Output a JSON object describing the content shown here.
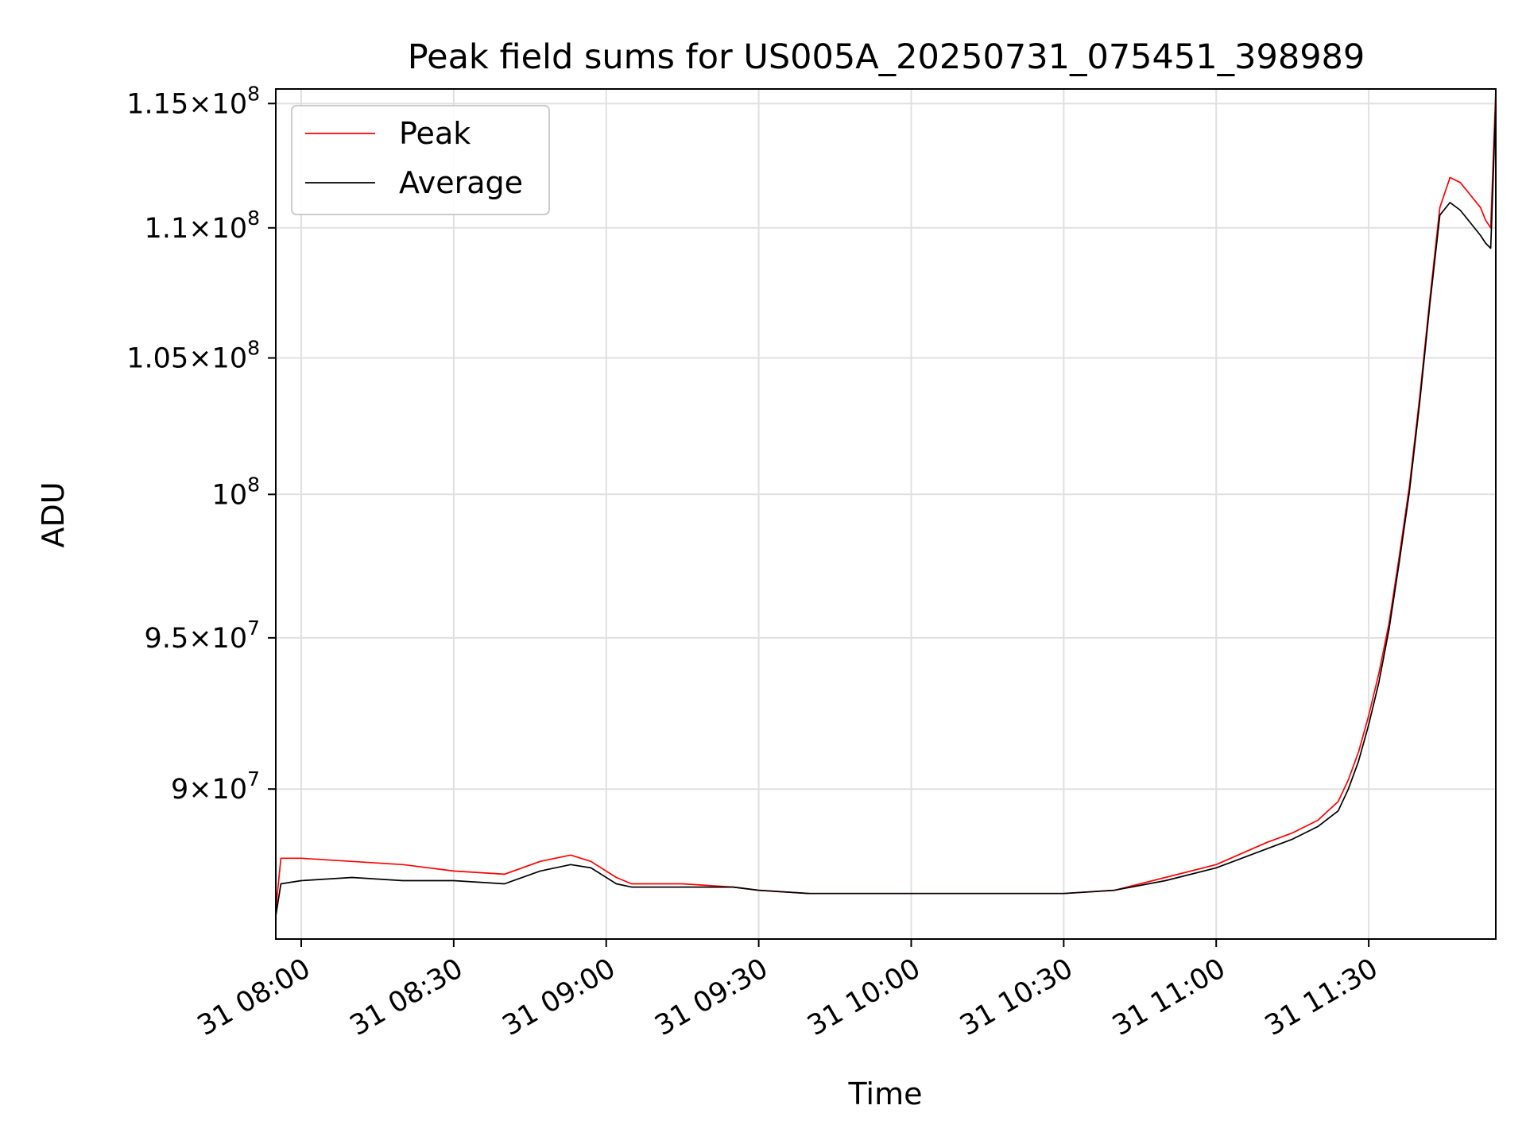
{
  "chart_data": {
    "type": "line",
    "title": "Peak field sums for US005A_20250731_075451_398989",
    "xlabel": "Time",
    "ylabel": "ADU",
    "xlim": [
      "2025-07-31T07:55:00",
      "2025-07-31T11:55:00"
    ],
    "ylim": [
      85300000,
      115600000
    ],
    "yscale": "log",
    "grid": true,
    "legend_position": "top-left",
    "xtick_labels": [
      "31 08:00",
      "31 08:30",
      "31 09:00",
      "31 09:30",
      "31 10:00",
      "31 10:30",
      "31 11:00",
      "31 11:30"
    ],
    "xtick_values": [
      "2025-07-31T08:00:00",
      "2025-07-31T08:30:00",
      "2025-07-31T09:00:00",
      "2025-07-31T09:30:00",
      "2025-07-31T10:00:00",
      "2025-07-31T10:30:00",
      "2025-07-31T11:00:00",
      "2025-07-31T11:30:00"
    ],
    "ytick_values": [
      90000000,
      95000000,
      100000000,
      105000000,
      110000000,
      115000000
    ],
    "ytick_mantissas": [
      "9",
      "9.5",
      "",
      "1.05",
      "1.1",
      "1.15"
    ],
    "ytick_exponents": [
      "7",
      "7",
      "8",
      "8",
      "8",
      "8"
    ],
    "series": [
      {
        "name": "Peak",
        "color": "#ff0000",
        "x": [
          "2025-07-31T07:55:00",
          "2025-07-31T07:56:00",
          "2025-07-31T08:00:00",
          "2025-07-31T08:10:00",
          "2025-07-31T08:20:00",
          "2025-07-31T08:30:00",
          "2025-07-31T08:40:00",
          "2025-07-31T08:47:00",
          "2025-07-31T08:53:00",
          "2025-07-31T08:57:00",
          "2025-07-31T09:02:00",
          "2025-07-31T09:05:00",
          "2025-07-31T09:15:00",
          "2025-07-31T09:25:00",
          "2025-07-31T09:30:00",
          "2025-07-31T09:40:00",
          "2025-07-31T09:50:00",
          "2025-07-31T10:00:00",
          "2025-07-31T10:10:00",
          "2025-07-31T10:20:00",
          "2025-07-31T10:30:00",
          "2025-07-31T10:40:00",
          "2025-07-31T10:50:00",
          "2025-07-31T11:00:00",
          "2025-07-31T11:10:00",
          "2025-07-31T11:15:00",
          "2025-07-31T11:20:00",
          "2025-07-31T11:24:00",
          "2025-07-31T11:26:00",
          "2025-07-31T11:28:00",
          "2025-07-31T11:30:00",
          "2025-07-31T11:32:00",
          "2025-07-31T11:34:00",
          "2025-07-31T11:36:00",
          "2025-07-31T11:38:00",
          "2025-07-31T11:40:00",
          "2025-07-31T11:42:00",
          "2025-07-31T11:44:00",
          "2025-07-31T11:46:00",
          "2025-07-31T11:48:00",
          "2025-07-31T11:50:00",
          "2025-07-31T11:52:00",
          "2025-07-31T11:53:00",
          "2025-07-31T11:54:00",
          "2025-07-31T11:55:00"
        ],
        "y": [
          86200000,
          87800000,
          87800000,
          87700000,
          87600000,
          87400000,
          87300000,
          87700000,
          87900000,
          87700000,
          87200000,
          87000000,
          87000000,
          86900000,
          86800000,
          86700000,
          86700000,
          86700000,
          86700000,
          86700000,
          86700000,
          86800000,
          87200000,
          87600000,
          88300000,
          88600000,
          89000000,
          89600000,
          90300000,
          91200000,
          92400000,
          93800000,
          95500000,
          97800000,
          100300000,
          103500000,
          107200000,
          110800000,
          112000000,
          111800000,
          111300000,
          110800000,
          110300000,
          110000000,
          115600000
        ]
      },
      {
        "name": "Average",
        "color": "#000000",
        "x": [
          "2025-07-31T07:55:00",
          "2025-07-31T07:56:00",
          "2025-07-31T08:00:00",
          "2025-07-31T08:10:00",
          "2025-07-31T08:20:00",
          "2025-07-31T08:30:00",
          "2025-07-31T08:40:00",
          "2025-07-31T08:47:00",
          "2025-07-31T08:53:00",
          "2025-07-31T08:57:00",
          "2025-07-31T09:02:00",
          "2025-07-31T09:05:00",
          "2025-07-31T09:15:00",
          "2025-07-31T09:25:00",
          "2025-07-31T09:30:00",
          "2025-07-31T09:40:00",
          "2025-07-31T09:50:00",
          "2025-07-31T10:00:00",
          "2025-07-31T10:10:00",
          "2025-07-31T10:20:00",
          "2025-07-31T10:30:00",
          "2025-07-31T10:40:00",
          "2025-07-31T10:50:00",
          "2025-07-31T11:00:00",
          "2025-07-31T11:10:00",
          "2025-07-31T11:15:00",
          "2025-07-31T11:20:00",
          "2025-07-31T11:24:00",
          "2025-07-31T11:26:00",
          "2025-07-31T11:28:00",
          "2025-07-31T11:30:00",
          "2025-07-31T11:32:00",
          "2025-07-31T11:34:00",
          "2025-07-31T11:36:00",
          "2025-07-31T11:38:00",
          "2025-07-31T11:40:00",
          "2025-07-31T11:42:00",
          "2025-07-31T11:44:00",
          "2025-07-31T11:46:00",
          "2025-07-31T11:48:00",
          "2025-07-31T11:50:00",
          "2025-07-31T11:52:00",
          "2025-07-31T11:53:00",
          "2025-07-31T11:54:00",
          "2025-07-31T11:55:00"
        ],
        "y": [
          86000000,
          87000000,
          87100000,
          87200000,
          87100000,
          87100000,
          87000000,
          87400000,
          87600000,
          87500000,
          87000000,
          86900000,
          86900000,
          86900000,
          86800000,
          86700000,
          86700000,
          86700000,
          86700000,
          86700000,
          86700000,
          86800000,
          87100000,
          87500000,
          88100000,
          88400000,
          88800000,
          89300000,
          90000000,
          90900000,
          92100000,
          93500000,
          95300000,
          97600000,
          100100000,
          103300000,
          107000000,
          110500000,
          111000000,
          110700000,
          110200000,
          109700000,
          109400000,
          109200000,
          115000000
        ]
      }
    ]
  }
}
